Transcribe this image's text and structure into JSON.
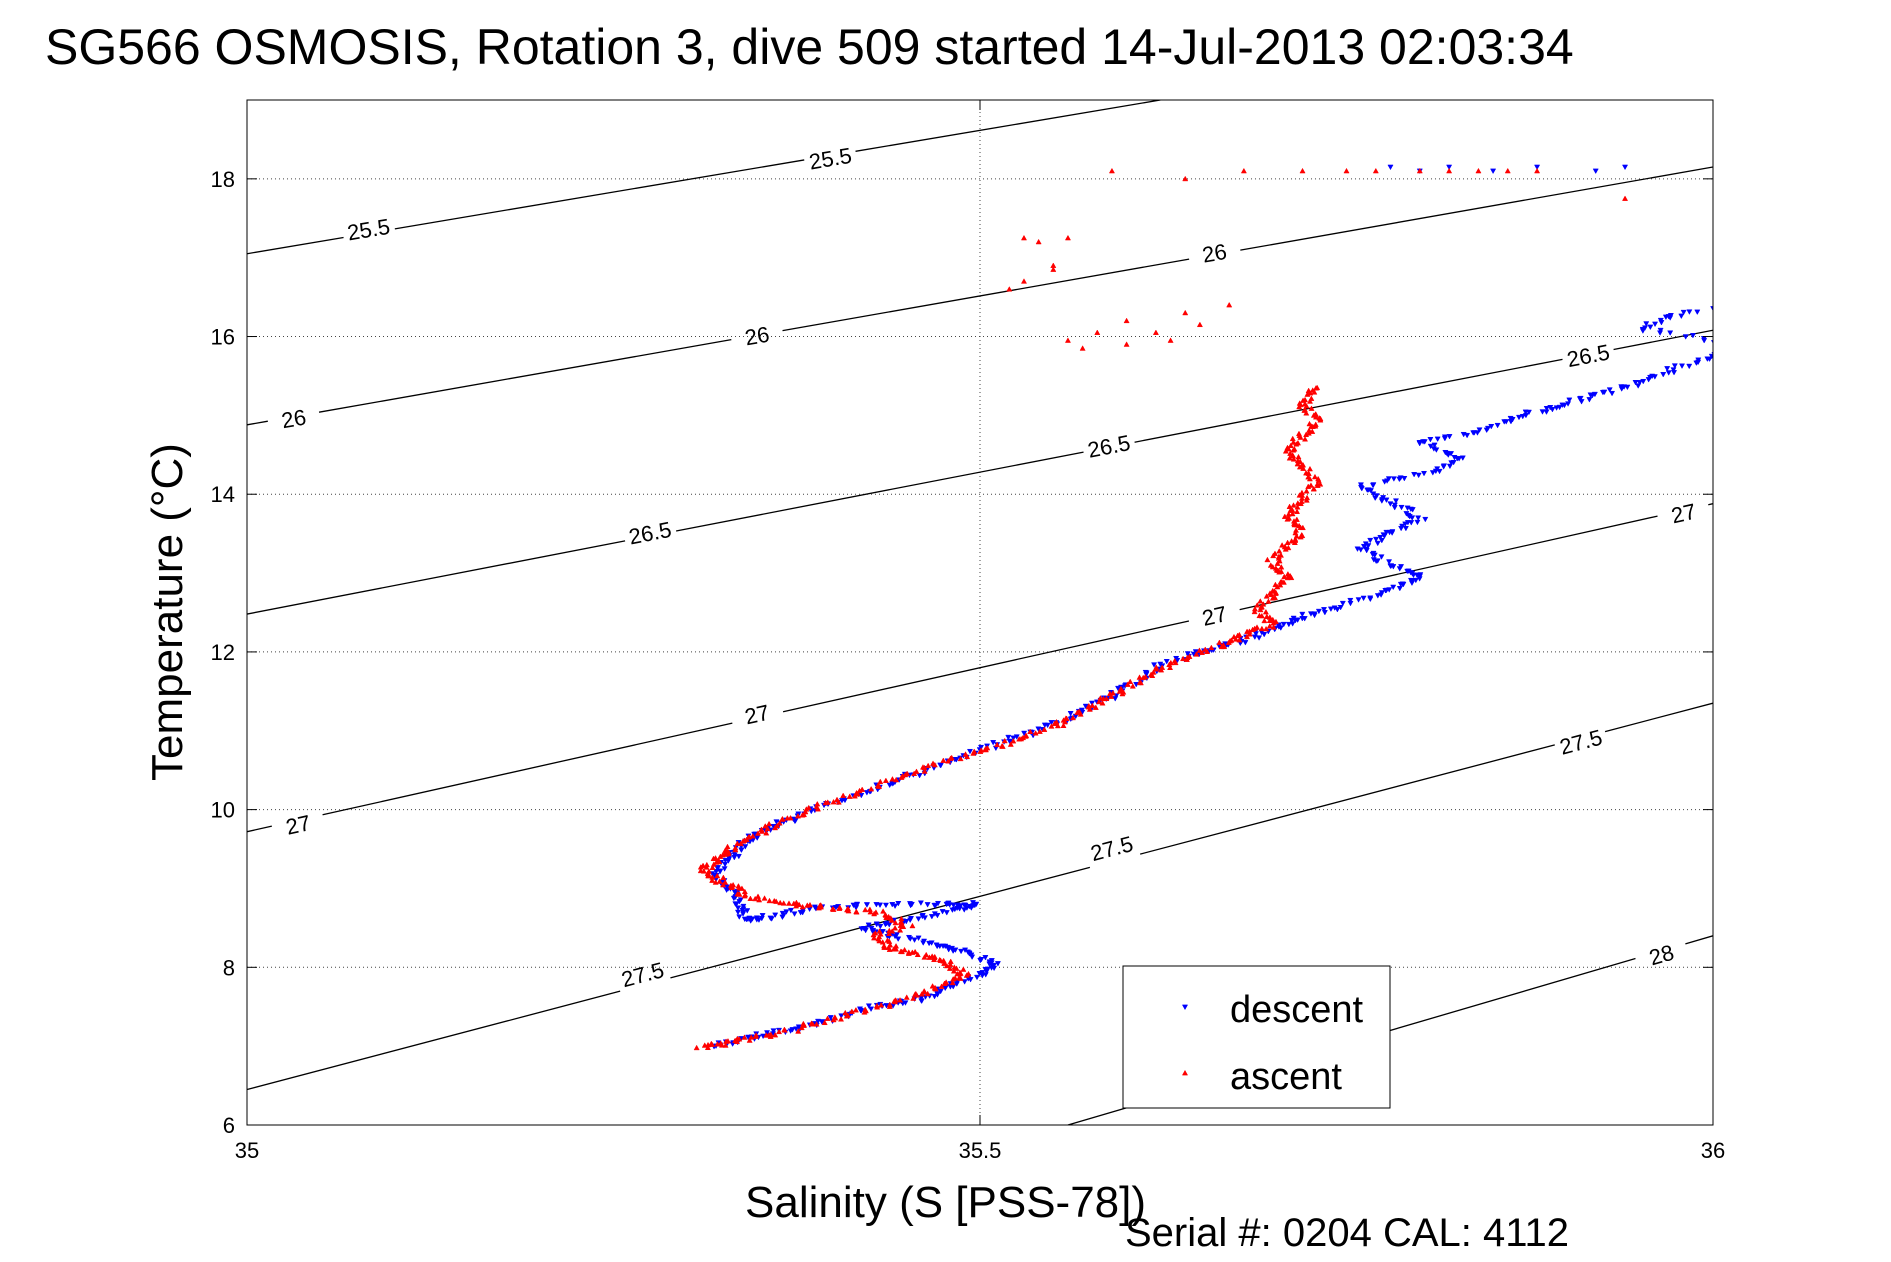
{
  "chart_data": {
    "type": "scatter",
    "title": "SG566 OSMOSIS, Rotation 3, dive 509 started 14-Jul-2013 02:03:34",
    "xlabel": "Salinity (S [PSS-78])",
    "ylabel": "Temperature (°C)",
    "xlim": [
      35,
      36
    ],
    "ylim": [
      6,
      19
    ],
    "xticks": [
      35,
      35.5,
      36
    ],
    "xtick_labels": [
      "35",
      "35.5",
      "36"
    ],
    "yticks": [
      6,
      8,
      10,
      12,
      14,
      16,
      18
    ],
    "ytick_labels": [
      "6",
      "8",
      "10",
      "12",
      "14",
      "16",
      "18"
    ],
    "grid": true,
    "legend_position": "lower-right",
    "density_contours": [
      {
        "value": "25.5",
        "line": [
          [
            35,
            17.05
          ],
          [
            35.623,
            19
          ]
        ],
        "labels": [
          [
            35.083,
            17.35
          ],
          [
            35.398,
            18.25
          ]
        ]
      },
      {
        "value": "26",
        "line": [
          [
            35,
            14.88
          ],
          [
            36,
            18.15
          ]
        ],
        "labels": [
          [
            35.032,
            14.95
          ],
          [
            35.348,
            16.0
          ],
          [
            35.66,
            17.05
          ]
        ]
      },
      {
        "value": "26.5",
        "line": [
          [
            35,
            12.48
          ],
          [
            36,
            16.08
          ]
        ],
        "labels": [
          [
            35.275,
            13.5
          ],
          [
            35.588,
            14.6
          ],
          [
            35.915,
            15.75
          ]
        ]
      },
      {
        "value": "27",
        "line": [
          [
            35,
            9.72
          ],
          [
            36,
            13.88
          ]
        ],
        "labels": [
          [
            35.035,
            9.8
          ],
          [
            35.348,
            11.2
          ],
          [
            35.66,
            12.45
          ],
          [
            35.98,
            13.75
          ]
        ]
      },
      {
        "value": "27.5",
        "line": [
          [
            35,
            6.45
          ],
          [
            36,
            11.35
          ]
        ],
        "labels": [
          [
            35.27,
            7.9
          ],
          [
            35.59,
            9.5
          ],
          [
            35.91,
            10.85
          ]
        ]
      },
      {
        "value": "28",
        "line": [
          [
            35.56,
            6
          ],
          [
            36,
            8.4
          ]
        ],
        "labels": [
          [
            35.965,
            8.15
          ]
        ]
      }
    ],
    "series": [
      {
        "name": "descent",
        "color": "#0000ff",
        "marker": "triangle-down",
        "path": [
          [
            35.32,
            7.0
          ],
          [
            35.34,
            7.1
          ],
          [
            35.37,
            7.2
          ],
          [
            35.4,
            7.35
          ],
          [
            35.43,
            7.5
          ],
          [
            35.46,
            7.6
          ],
          [
            35.48,
            7.75
          ],
          [
            35.5,
            7.9
          ],
          [
            35.51,
            8.05
          ],
          [
            35.49,
            8.2
          ],
          [
            35.47,
            8.3
          ],
          [
            35.44,
            8.4
          ],
          [
            35.42,
            8.5
          ],
          [
            35.45,
            8.6
          ],
          [
            35.48,
            8.72
          ],
          [
            35.5,
            8.8
          ],
          [
            35.47,
            8.8
          ],
          [
            35.43,
            8.8
          ],
          [
            35.39,
            8.75
          ],
          [
            35.36,
            8.65
          ],
          [
            35.34,
            8.6
          ],
          [
            35.335,
            8.8
          ],
          [
            35.33,
            9.0
          ],
          [
            35.32,
            9.2
          ],
          [
            35.33,
            9.4
          ],
          [
            35.34,
            9.6
          ],
          [
            35.36,
            9.8
          ],
          [
            35.38,
            9.95
          ],
          [
            35.41,
            10.15
          ],
          [
            35.44,
            10.35
          ],
          [
            35.47,
            10.55
          ],
          [
            35.5,
            10.75
          ],
          [
            35.53,
            10.95
          ],
          [
            35.56,
            11.15
          ],
          [
            35.58,
            11.35
          ],
          [
            35.6,
            11.55
          ],
          [
            35.62,
            11.8
          ],
          [
            35.65,
            12.0
          ],
          [
            35.68,
            12.15
          ],
          [
            35.7,
            12.3
          ],
          [
            35.72,
            12.45
          ],
          [
            35.75,
            12.6
          ],
          [
            35.78,
            12.8
          ],
          [
            35.8,
            12.95
          ],
          [
            35.78,
            13.1
          ],
          [
            35.76,
            13.3
          ],
          [
            35.78,
            13.5
          ],
          [
            35.8,
            13.7
          ],
          [
            35.78,
            13.9
          ],
          [
            35.76,
            14.1
          ],
          [
            35.8,
            14.25
          ],
          [
            35.83,
            14.45
          ],
          [
            35.8,
            14.65
          ],
          [
            35.84,
            14.8
          ],
          [
            35.87,
            15.0
          ],
          [
            35.9,
            15.15
          ],
          [
            35.93,
            15.3
          ],
          [
            35.96,
            15.5
          ],
          [
            35.99,
            15.7
          ],
          [
            36.02,
            15.9
          ],
          [
            35.95,
            16.1
          ],
          [
            35.98,
            16.3
          ],
          [
            36.05,
            16.5
          ]
        ],
        "extra": [
          [
            35.78,
            18.15
          ],
          [
            35.8,
            18.1
          ],
          [
            35.82,
            18.15
          ],
          [
            35.85,
            18.1
          ],
          [
            35.88,
            18.15
          ],
          [
            35.92,
            18.1
          ],
          [
            35.94,
            18.15
          ]
        ]
      },
      {
        "name": "ascent",
        "color": "#ff0000",
        "marker": "triangle-up",
        "path": [
          [
            35.31,
            7.0
          ],
          [
            35.33,
            7.05
          ],
          [
            35.36,
            7.15
          ],
          [
            35.39,
            7.3
          ],
          [
            35.42,
            7.45
          ],
          [
            35.45,
            7.6
          ],
          [
            35.47,
            7.75
          ],
          [
            35.49,
            7.9
          ],
          [
            35.48,
            8.05
          ],
          [
            35.46,
            8.15
          ],
          [
            35.44,
            8.25
          ],
          [
            35.43,
            8.4
          ],
          [
            35.45,
            8.55
          ],
          [
            35.43,
            8.7
          ],
          [
            35.4,
            8.75
          ],
          [
            35.37,
            8.8
          ],
          [
            35.34,
            8.9
          ],
          [
            35.33,
            9.05
          ],
          [
            35.31,
            9.2
          ],
          [
            35.32,
            9.35
          ],
          [
            35.33,
            9.5
          ],
          [
            35.35,
            9.7
          ],
          [
            35.37,
            9.9
          ],
          [
            35.4,
            10.1
          ],
          [
            35.43,
            10.3
          ],
          [
            35.46,
            10.5
          ],
          [
            35.49,
            10.7
          ],
          [
            35.52,
            10.85
          ],
          [
            35.55,
            11.05
          ],
          [
            35.57,
            11.25
          ],
          [
            35.59,
            11.45
          ],
          [
            35.61,
            11.65
          ],
          [
            35.63,
            11.85
          ],
          [
            35.66,
            12.05
          ],
          [
            35.68,
            12.2
          ],
          [
            35.7,
            12.35
          ],
          [
            35.69,
            12.55
          ],
          [
            35.7,
            12.75
          ],
          [
            35.71,
            12.95
          ],
          [
            35.7,
            13.15
          ],
          [
            35.71,
            13.35
          ],
          [
            35.72,
            13.55
          ],
          [
            35.71,
            13.75
          ],
          [
            35.72,
            13.95
          ],
          [
            35.73,
            14.15
          ],
          [
            35.72,
            14.35
          ],
          [
            35.71,
            14.55
          ],
          [
            35.72,
            14.75
          ],
          [
            35.73,
            14.95
          ],
          [
            35.72,
            15.15
          ],
          [
            35.73,
            15.35
          ]
        ],
        "extra": [
          [
            35.59,
            18.1
          ],
          [
            35.64,
            18.0
          ],
          [
            35.68,
            18.1
          ],
          [
            35.72,
            18.1
          ],
          [
            35.75,
            18.1
          ],
          [
            35.77,
            18.1
          ],
          [
            35.8,
            18.1
          ],
          [
            35.82,
            18.1
          ],
          [
            35.84,
            18.1
          ],
          [
            35.86,
            18.1
          ],
          [
            35.88,
            18.1
          ],
          [
            35.54,
            17.2
          ],
          [
            35.53,
            17.25
          ],
          [
            35.56,
            17.25
          ],
          [
            35.55,
            16.85
          ],
          [
            35.53,
            16.7
          ],
          [
            35.52,
            16.6
          ],
          [
            35.55,
            16.9
          ],
          [
            35.6,
            16.2
          ],
          [
            35.64,
            16.3
          ],
          [
            35.58,
            16.05
          ],
          [
            35.62,
            16.05
          ],
          [
            35.65,
            16.15
          ],
          [
            35.6,
            15.9
          ],
          [
            35.63,
            15.95
          ],
          [
            35.57,
            15.85
          ],
          [
            35.56,
            15.95
          ],
          [
            35.67,
            16.4
          ],
          [
            35.94,
            17.75
          ]
        ]
      }
    ]
  },
  "footer": {
    "serial_text": "Serial #: 0204  CAL: 4112"
  }
}
